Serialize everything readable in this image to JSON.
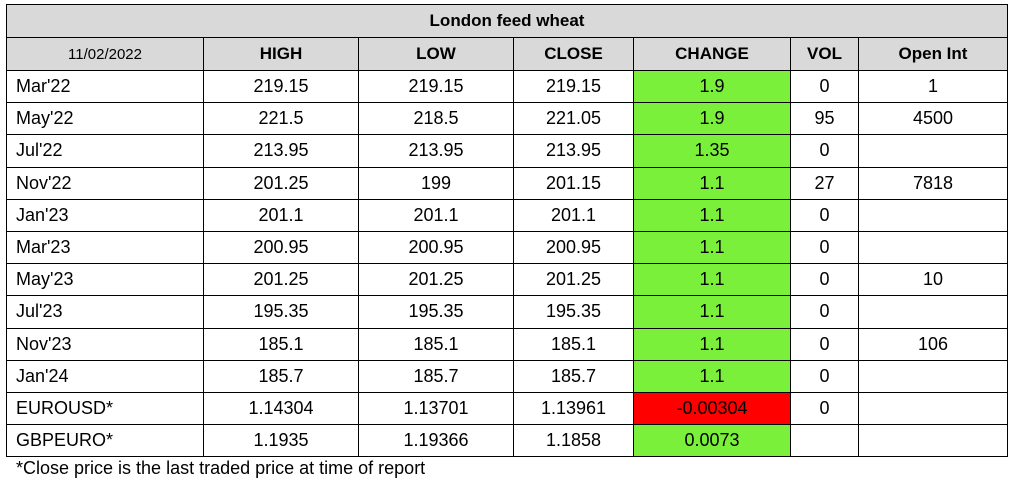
{
  "title": "London feed wheat",
  "date": "11/02/2022",
  "columns": [
    "HIGH",
    "LOW",
    "CLOSE",
    "CHANGE",
    "VOL",
    "Open Int"
  ],
  "rows": [
    {
      "contract": "Mar'22",
      "high": "219.15",
      "low": "219.15",
      "close": "219.15",
      "change": "1.9",
      "change_dir": "up",
      "vol": "0",
      "open_int": "1"
    },
    {
      "contract": "May'22",
      "high": "221.5",
      "low": "218.5",
      "close": "221.05",
      "change": "1.9",
      "change_dir": "up",
      "vol": "95",
      "open_int": "4500"
    },
    {
      "contract": "Jul'22",
      "high": "213.95",
      "low": "213.95",
      "close": "213.95",
      "change": "1.35",
      "change_dir": "up",
      "vol": "0",
      "open_int": ""
    },
    {
      "contract": "Nov'22",
      "high": "201.25",
      "low": "199",
      "close": "201.15",
      "change": "1.1",
      "change_dir": "up",
      "vol": "27",
      "open_int": "7818"
    },
    {
      "contract": "Jan'23",
      "high": "201.1",
      "low": "201.1",
      "close": "201.1",
      "change": "1.1",
      "change_dir": "up",
      "vol": "0",
      "open_int": ""
    },
    {
      "contract": "Mar'23",
      "high": "200.95",
      "low": "200.95",
      "close": "200.95",
      "change": "1.1",
      "change_dir": "up",
      "vol": "0",
      "open_int": ""
    },
    {
      "contract": "May'23",
      "high": "201.25",
      "low": "201.25",
      "close": "201.25",
      "change": "1.1",
      "change_dir": "up",
      "vol": "0",
      "open_int": "10"
    },
    {
      "contract": "Jul'23",
      "high": "195.35",
      "low": "195.35",
      "close": "195.35",
      "change": "1.1",
      "change_dir": "up",
      "vol": "0",
      "open_int": ""
    },
    {
      "contract": "Nov'23",
      "high": "185.1",
      "low": "185.1",
      "close": "185.1",
      "change": "1.1",
      "change_dir": "up",
      "vol": "0",
      "open_int": "106"
    },
    {
      "contract": "Jan'24",
      "high": "185.7",
      "low": "185.7",
      "close": "185.7",
      "change": "1.1",
      "change_dir": "up",
      "vol": "0",
      "open_int": ""
    },
    {
      "contract": "EUROUSD*",
      "high": "1.14304",
      "low": "1.13701",
      "close": "1.13961",
      "change": "-0.00304",
      "change_dir": "down",
      "vol": "0",
      "open_int": ""
    },
    {
      "contract": "GBPEURO*",
      "high": "1.1935",
      "low": "1.19366",
      "close": "1.1858",
      "change": "0.0073",
      "change_dir": "up",
      "vol": "",
      "open_int": ""
    }
  ],
  "colors": {
    "header_bg": "#d9d9d9",
    "positive": "#7bf03a",
    "negative": "#ff0000"
  },
  "footnote": "*Close price is the last traded price at time of report"
}
